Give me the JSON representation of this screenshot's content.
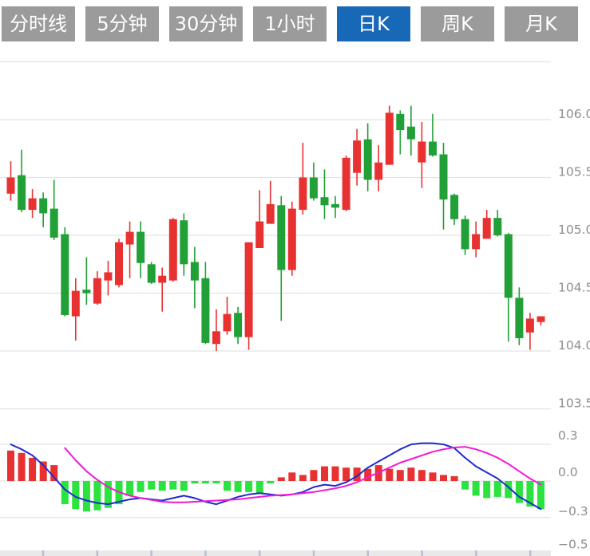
{
  "tabs": {
    "items": [
      {
        "label": "分时线",
        "active": false
      },
      {
        "label": "5分钟",
        "active": false
      },
      {
        "label": "30分钟",
        "active": false
      },
      {
        "label": "1小时",
        "active": false
      },
      {
        "label": "日K",
        "active": true
      },
      {
        "label": "周K",
        "active": false
      },
      {
        "label": "月K",
        "active": false
      }
    ]
  },
  "colors": {
    "tab_bg": "#9b9b9b",
    "tab_active_bg": "#1768b6",
    "tab_text": "#ffffff",
    "candle_up": "#e83232",
    "candle_down": "#21a037",
    "hist_up": "#e83232",
    "hist_down": "#2ce23f",
    "dif_line": "#1e2bce",
    "dea_line": "#f318d2",
    "grid": "#e3e3e3",
    "axis_label": "#8e8e8e",
    "bottom_axis_bg": "#e9e9e9",
    "bottom_axis_tick": "#b7c0d0"
  },
  "chart_data": [
    {
      "type": "candlestick",
      "name": "daily-k-price-panel",
      "title": "",
      "color_convention": "red = close >= open (up), green = close < open (down)",
      "y_ticks": [
        {
          "label": "106.0",
          "value": 106.0
        },
        {
          "label": "105.5",
          "value": 105.5
        },
        {
          "label": "105.0",
          "value": 105.0
        },
        {
          "label": "104.5",
          "value": 104.5
        },
        {
          "label": "104.0",
          "value": 104.0
        },
        {
          "label": "103.5",
          "value": 103.5
        }
      ],
      "grid_prices": [
        106.5,
        106.0,
        105.5,
        105.0,
        104.5,
        104.0,
        103.5
      ],
      "ylim": [
        103.3,
        106.6
      ],
      "ohlc": [
        [
          105.36,
          105.64,
          105.3,
          105.5
        ],
        [
          105.52,
          105.74,
          105.2,
          105.22
        ],
        [
          105.22,
          105.4,
          105.15,
          105.32
        ],
        [
          105.32,
          105.37,
          105.07,
          105.19
        ],
        [
          105.23,
          105.48,
          104.96,
          104.98
        ],
        [
          105.01,
          105.07,
          104.3,
          104.31
        ],
        [
          104.3,
          104.63,
          104.09,
          104.52
        ],
        [
          104.53,
          104.81,
          104.4,
          104.5
        ],
        [
          104.41,
          104.69,
          104.4,
          104.63
        ],
        [
          104.61,
          104.78,
          104.48,
          104.68
        ],
        [
          104.57,
          104.97,
          104.55,
          104.94
        ],
        [
          104.92,
          105.12,
          104.63,
          105.03
        ],
        [
          105.03,
          105.12,
          104.63,
          104.76
        ],
        [
          104.75,
          104.77,
          104.58,
          104.59
        ],
        [
          104.59,
          104.72,
          104.34,
          104.65
        ],
        [
          104.61,
          105.15,
          104.6,
          105.14
        ],
        [
          105.13,
          105.19,
          104.65,
          104.75
        ],
        [
          104.77,
          104.9,
          104.37,
          104.61
        ],
        [
          104.63,
          104.77,
          104.06,
          104.07
        ],
        [
          104.06,
          104.36,
          104.0,
          104.17
        ],
        [
          104.17,
          104.47,
          104.14,
          104.32
        ],
        [
          104.33,
          104.38,
          104.06,
          104.12
        ],
        [
          104.12,
          104.94,
          104.01,
          104.94
        ],
        [
          104.89,
          105.39,
          104.89,
          105.12
        ],
        [
          105.1,
          105.47,
          105.1,
          105.27
        ],
        [
          105.26,
          105.34,
          104.26,
          104.7
        ],
        [
          104.7,
          105.29,
          104.65,
          105.23
        ],
        [
          105.22,
          105.8,
          105.18,
          105.5
        ],
        [
          105.5,
          105.63,
          105.3,
          105.32
        ],
        [
          105.33,
          105.57,
          105.14,
          105.26
        ],
        [
          105.27,
          105.34,
          105.15,
          105.24
        ],
        [
          105.22,
          105.69,
          105.21,
          105.67
        ],
        [
          105.54,
          105.92,
          105.43,
          105.82
        ],
        [
          105.83,
          105.97,
          105.38,
          105.48
        ],
        [
          105.48,
          105.78,
          105.38,
          105.63
        ],
        [
          105.61,
          106.12,
          105.61,
          106.06
        ],
        [
          106.05,
          106.08,
          105.7,
          105.91
        ],
        [
          105.94,
          106.12,
          105.69,
          105.83
        ],
        [
          105.63,
          105.98,
          105.41,
          105.81
        ],
        [
          105.81,
          106.05,
          105.68,
          105.69
        ],
        [
          105.7,
          105.8,
          105.05,
          105.31
        ],
        [
          105.35,
          105.36,
          105.09,
          105.14
        ],
        [
          105.14,
          105.17,
          104.83,
          104.88
        ],
        [
          104.88,
          105.12,
          104.81,
          105.01
        ],
        [
          104.97,
          105.22,
          104.97,
          105.15
        ],
        [
          105.15,
          105.22,
          104.99,
          105.0
        ],
        [
          105.01,
          105.02,
          104.08,
          104.46
        ],
        [
          104.46,
          104.55,
          104.05,
          104.11
        ],
        [
          104.16,
          104.33,
          104.01,
          104.28
        ],
        [
          104.25,
          104.3,
          104.22,
          104.3
        ]
      ]
    },
    {
      "type": "bar",
      "name": "macd-panel",
      "title": "",
      "y_ticks": [
        {
          "label": "0.3",
          "value": 0.3
        },
        {
          "label": "0.0",
          "value": 0.0
        },
        {
          "label": "−0.3",
          "value": -0.3
        },
        {
          "label": "−0.5",
          "value": -0.5
        }
      ],
      "grid_values": [
        0.3,
        0.0,
        -0.3
      ],
      "ylim": [
        -0.55,
        0.42
      ],
      "histogram": [
        0.25,
        0.23,
        0.19,
        0.16,
        0.13,
        -0.19,
        -0.23,
        -0.25,
        -0.24,
        -0.22,
        -0.19,
        -0.12,
        -0.09,
        -0.07,
        -0.08,
        -0.07,
        -0.08,
        -0.02,
        -0.02,
        -0.02,
        -0.08,
        -0.09,
        -0.09,
        -0.1,
        -0.02,
        0.03,
        0.07,
        0.05,
        0.09,
        0.12,
        0.12,
        0.11,
        0.11,
        0.1,
        0.13,
        0.1,
        0.09,
        0.11,
        0.09,
        0.07,
        0.05,
        0.04,
        -0.07,
        -0.12,
        -0.14,
        -0.13,
        -0.14,
        -0.18,
        -0.21,
        -0.23
      ],
      "series": [
        {
          "name": "DIF",
          "color_key": "dif_line",
          "values": [
            0.3,
            0.26,
            0.21,
            0.13,
            0.03,
            -0.07,
            -0.13,
            -0.16,
            -0.18,
            -0.19,
            -0.17,
            -0.15,
            -0.14,
            -0.15,
            -0.16,
            -0.14,
            -0.12,
            -0.14,
            -0.17,
            -0.19,
            -0.16,
            -0.13,
            -0.11,
            -0.1,
            -0.11,
            -0.12,
            -0.11,
            -0.09,
            -0.05,
            -0.03,
            -0.04,
            -0.01,
            0.04,
            0.11,
            0.16,
            0.21,
            0.26,
            0.3,
            0.31,
            0.31,
            0.3,
            0.27,
            0.19,
            0.12,
            0.07,
            0.02,
            -0.05,
            -0.13,
            -0.18,
            -0.23
          ]
        },
        {
          "name": "DEA",
          "color_key": "dea_line",
          "values": [
            null,
            null,
            null,
            null,
            null,
            0.27,
            0.17,
            0.08,
            0.01,
            -0.05,
            -0.09,
            -0.12,
            -0.14,
            -0.155,
            -0.17,
            -0.175,
            -0.175,
            -0.17,
            -0.165,
            -0.16,
            -0.155,
            -0.15,
            -0.14,
            -0.13,
            -0.12,
            -0.115,
            -0.11,
            -0.1,
            -0.09,
            -0.075,
            -0.06,
            -0.04,
            -0.01,
            0.03,
            0.07,
            0.11,
            0.15,
            0.18,
            0.21,
            0.24,
            0.26,
            0.275,
            0.28,
            0.26,
            0.23,
            0.19,
            0.14,
            0.08,
            0.02,
            -0.03
          ]
        }
      ],
      "time_axis": {
        "ticks": 10,
        "labels_visible": false
      }
    }
  ]
}
